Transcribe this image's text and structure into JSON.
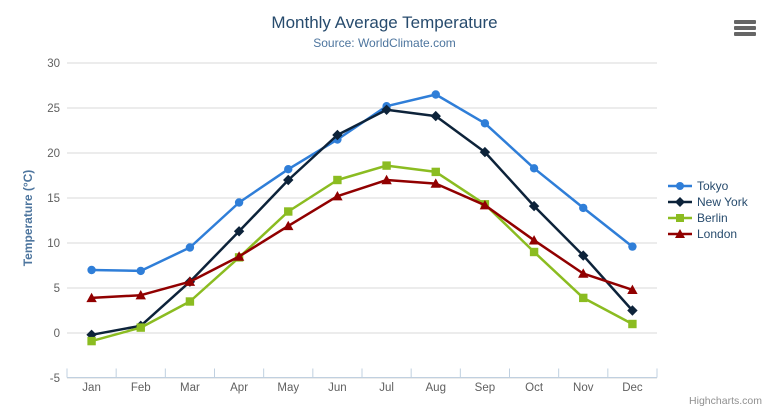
{
  "title": "Monthly Average Temperature",
  "subtitle": "Source: WorldClimate.com",
  "credits": "Highcharts.com",
  "menu_icon": "hamburger-menu-icon",
  "colors": {
    "title_text": "#274b6d",
    "subtitle_text": "#4d759e",
    "yaxis_title_text": "#4d759e",
    "axis_label_text": "#606060",
    "legend_text": "#274b6d",
    "gridline": "#d8d8d8",
    "axis_line": "#c0d0e0",
    "credits_text": "#8f8f8f",
    "menu_icon": "#666666"
  },
  "chart_data": {
    "type": "line",
    "title": "Monthly Average Temperature",
    "subtitle": "Source: WorldClimate.com",
    "xlabel": "",
    "ylabel": "Temperature (°C)",
    "ylim": [
      -5,
      30
    ],
    "ytick_step": 5,
    "grid": true,
    "legend_position": "right",
    "categories": [
      "Jan",
      "Feb",
      "Mar",
      "Apr",
      "May",
      "Jun",
      "Jul",
      "Aug",
      "Sep",
      "Oct",
      "Nov",
      "Dec"
    ],
    "series": [
      {
        "name": "Tokyo",
        "color": "#2f7ed8",
        "marker": "circle",
        "values": [
          7.0,
          6.9,
          9.5,
          14.5,
          18.2,
          21.5,
          25.2,
          26.5,
          23.3,
          18.3,
          13.9,
          9.6
        ]
      },
      {
        "name": "New York",
        "color": "#0d233a",
        "marker": "diamond",
        "values": [
          -0.2,
          0.8,
          5.7,
          11.3,
          17.0,
          22.0,
          24.8,
          24.1,
          20.1,
          14.1,
          8.6,
          2.5
        ]
      },
      {
        "name": "Berlin",
        "color": "#8bbc21",
        "marker": "square",
        "values": [
          -0.9,
          0.6,
          3.5,
          8.4,
          13.5,
          17.0,
          18.6,
          17.9,
          14.3,
          9.0,
          3.9,
          1.0
        ]
      },
      {
        "name": "London",
        "color": "#910000",
        "marker": "triangle",
        "values": [
          3.9,
          4.2,
          5.7,
          8.5,
          11.9,
          15.2,
          17.0,
          16.6,
          14.2,
          10.3,
          6.6,
          4.8
        ]
      }
    ]
  }
}
